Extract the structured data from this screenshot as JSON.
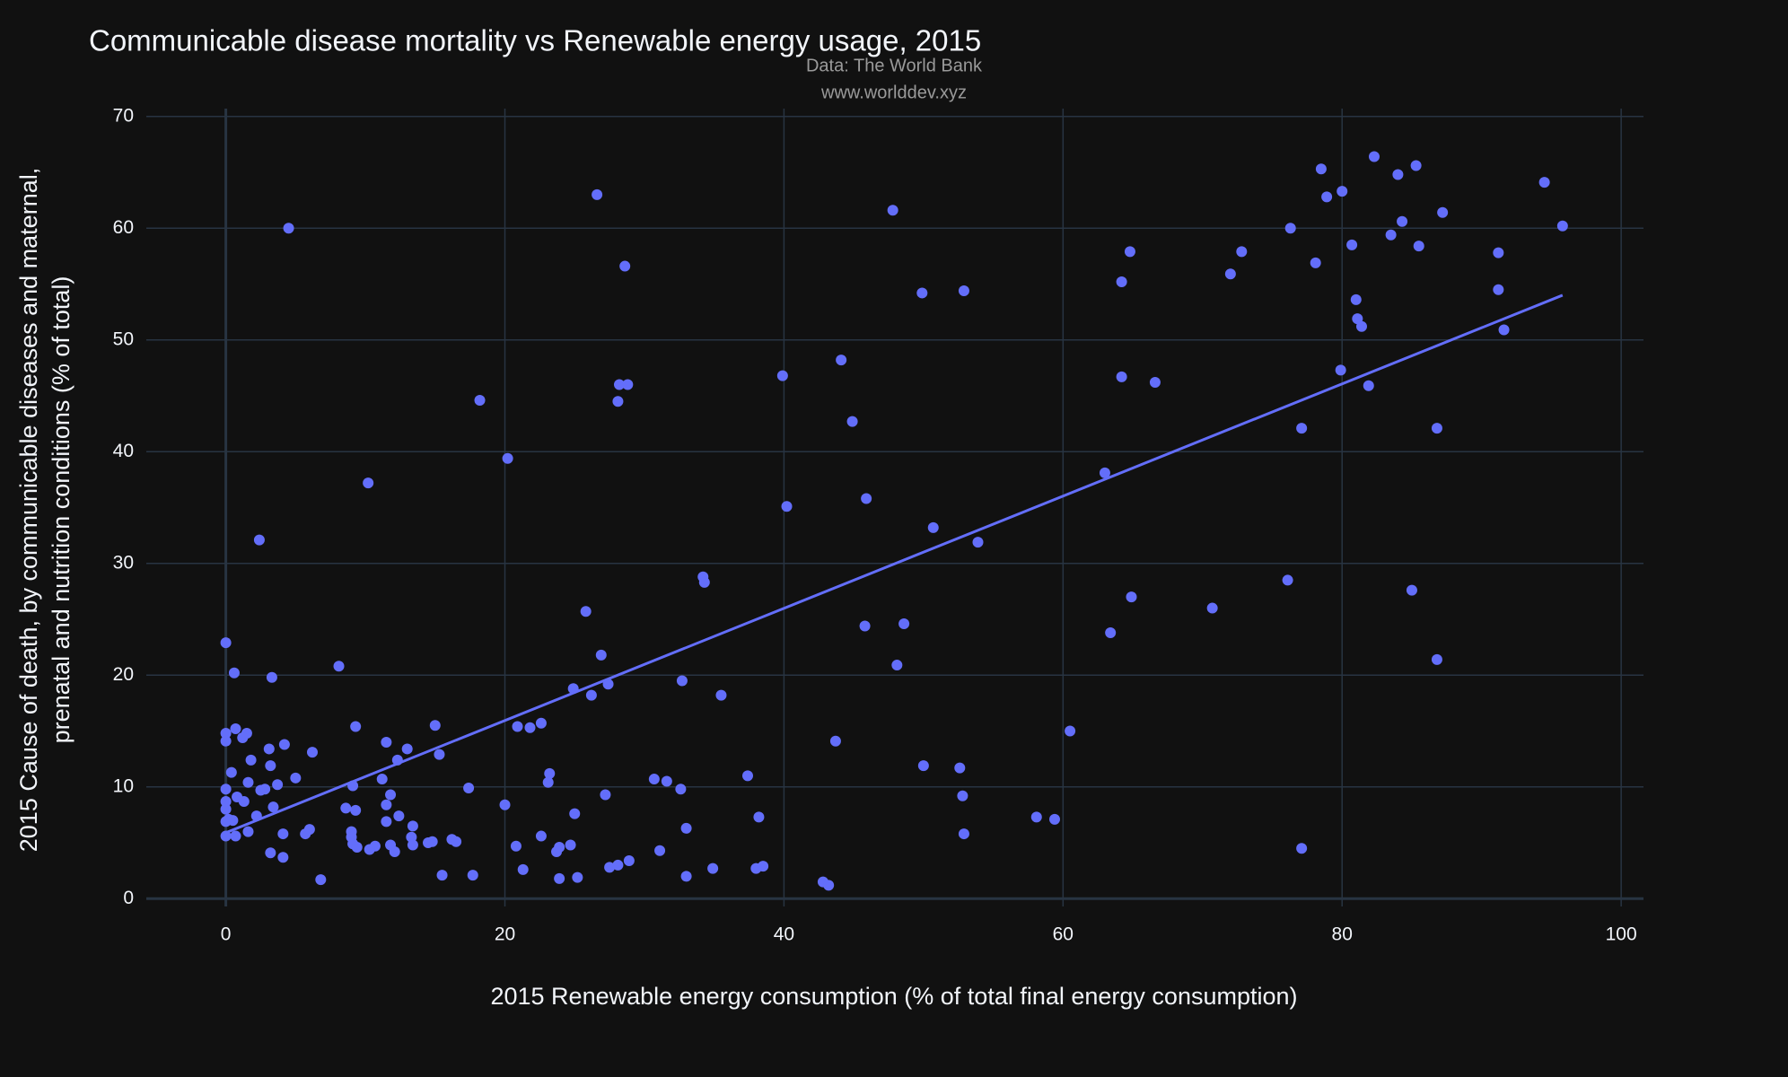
{
  "chart_data": {
    "type": "scatter",
    "title": "Communicable disease mortality vs Renewable energy usage, 2015",
    "annotations": [
      "Data: The World Bank",
      "www.worlddev.xyz"
    ],
    "x_label": "2015 Renewable energy consumption (% of total final energy consumption)",
    "y_label": [
      "2015 Cause of death, by communicable diseases and maternal,",
      "prenatal and nutrition conditions (% of total)"
    ],
    "xlim": [
      -5.7,
      101.6
    ],
    "ylim": [
      -0.7,
      70.7
    ],
    "xticks": [
      0,
      20,
      40,
      60,
      80,
      100
    ],
    "yticks": [
      0,
      10,
      20,
      30,
      40,
      50,
      60,
      70
    ],
    "grid": true,
    "background": "#111111",
    "grid_color": "#283442",
    "series": [
      {
        "color": "#636efa",
        "x": [
          4.5,
          26.6,
          28.6,
          47.8,
          49.9,
          52.9,
          18.2,
          28.2,
          28.8,
          28.1,
          20.2,
          10.2,
          2.4,
          39.9,
          44.1,
          44.9,
          40.2,
          45.9,
          50.7,
          53.9,
          34.2,
          34.3,
          25.8,
          26.9,
          24.9,
          26.2,
          27.4,
          32.7,
          35.5,
          45.8,
          48.6,
          48.1,
          43.7,
          8.1,
          0,
          0.6,
          3.3,
          0,
          0,
          0.7,
          1.5,
          1.2,
          4.2,
          3.1,
          6.2,
          1.8,
          3.2,
          0.4,
          5.0,
          1.6,
          3.7,
          2.8,
          0,
          2.5,
          0.8,
          1.3,
          3.4,
          0,
          0,
          2.2,
          0.2,
          0,
          0.5,
          1.6,
          0,
          0.7,
          4.1,
          6.0,
          5.7,
          3.2,
          4.1,
          6.8,
          9.3,
          11.5,
          13.0,
          12.3,
          15.0,
          15.3,
          11.2,
          9.1,
          11.8,
          17.4,
          11.5,
          8.6,
          9.3,
          12.4,
          11.5,
          13.4,
          9.0,
          9.0,
          13.3,
          9.1,
          9.4,
          10.7,
          10.3,
          11.8,
          12.1,
          13.4,
          14.5,
          14.8,
          16.2,
          16.5,
          15.5,
          17.7,
          20.0,
          20.9,
          21.8,
          22.6,
          23.2,
          23.1,
          20.8,
          22.6,
          23.7,
          23.9,
          24.7,
          25.0,
          21.3,
          23.9,
          25.2,
          27.2,
          27.5,
          28.1,
          28.9,
          30.7,
          31.6,
          32.6,
          33.0,
          31.1,
          33.0,
          34.9,
          37.4,
          38.2,
          38.0,
          38.5,
          42.8,
          43.2,
          50.0,
          52.6,
          52.8,
          52.9,
          60.5,
          58.1,
          59.4,
          63.0,
          63.4,
          64.9,
          64.2,
          64.8,
          64.2,
          66.6,
          70.7,
          72.0,
          72.8,
          76.3,
          76.1,
          77.1,
          77.1,
          78.1,
          78.5,
          78.9,
          80.0,
          79.9,
          80.7,
          81.0,
          81.1,
          81.4,
          81.9,
          82.3,
          83.5,
          84.0,
          84.3,
          85.3,
          85.5,
          85.0,
          86.8,
          86.8,
          87.2,
          91.2,
          91.2,
          91.6,
          94.5,
          95.8
        ],
        "values": [
          60.0,
          63.0,
          56.6,
          61.6,
          54.2,
          54.4,
          44.6,
          46.0,
          46.0,
          44.5,
          39.4,
          37.2,
          32.1,
          46.8,
          48.2,
          42.7,
          35.1,
          35.8,
          33.2,
          31.9,
          28.8,
          28.3,
          25.7,
          21.8,
          18.8,
          18.2,
          19.2,
          19.5,
          18.2,
          24.4,
          24.6,
          20.9,
          14.1,
          20.8,
          22.9,
          20.2,
          19.8,
          14.8,
          14.1,
          15.2,
          14.8,
          14.4,
          13.8,
          13.4,
          13.1,
          12.4,
          11.9,
          11.3,
          10.8,
          10.4,
          10.2,
          9.8,
          9.8,
          9.7,
          9.1,
          8.7,
          8.2,
          8.7,
          8.0,
          7.4,
          7.1,
          6.9,
          7.0,
          6.0,
          5.6,
          5.6,
          5.8,
          6.2,
          5.8,
          4.1,
          3.7,
          1.7,
          15.4,
          14.0,
          13.4,
          12.4,
          15.5,
          12.9,
          10.7,
          10.1,
          9.3,
          9.9,
          8.4,
          8.1,
          7.9,
          7.4,
          6.9,
          6.5,
          6.0,
          5.5,
          5.5,
          4.9,
          4.6,
          4.7,
          4.4,
          4.8,
          4.2,
          4.8,
          5.0,
          5.1,
          5.3,
          5.1,
          2.1,
          2.1,
          8.4,
          15.4,
          15.3,
          15.7,
          11.2,
          10.4,
          4.7,
          5.6,
          4.2,
          4.6,
          4.8,
          7.6,
          2.6,
          1.8,
          1.9,
          9.3,
          2.8,
          3.0,
          3.4,
          10.7,
          10.5,
          9.8,
          6.3,
          4.3,
          2.0,
          2.7,
          11.0,
          7.3,
          2.7,
          2.9,
          1.5,
          1.2,
          11.9,
          11.7,
          9.2,
          5.8,
          15.0,
          7.3,
          7.1,
          38.1,
          23.8,
          27.0,
          55.2,
          57.9,
          46.7,
          46.2,
          26.0,
          55.9,
          57.9,
          60.0,
          28.5,
          4.5,
          42.1,
          56.9,
          65.3,
          62.8,
          63.3,
          47.3,
          58.5,
          53.6,
          51.9,
          51.2,
          45.9,
          66.4,
          59.4,
          64.8,
          60.6,
          65.6,
          58.4,
          27.6,
          42.1,
          21.4,
          61.4,
          57.8,
          54.5,
          50.9,
          64.1,
          60.2
        ]
      }
    ],
    "trendline": {
      "color": "#636efa",
      "x": [
        0,
        95.8
      ],
      "values": [
        5.9,
        54.0
      ]
    }
  }
}
